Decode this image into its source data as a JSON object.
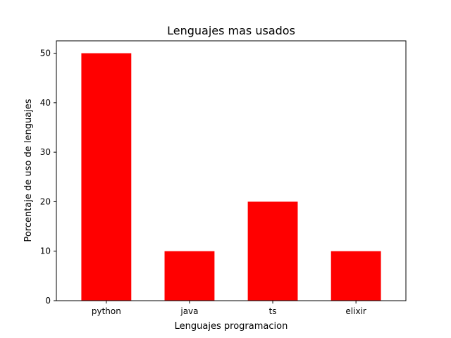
{
  "chart_data": {
    "type": "bar",
    "title": "Lenguajes mas usados",
    "xlabel": "Lenguajes programacion",
    "ylabel": "Porcentaje de uso de lenguajes",
    "categories": [
      "python",
      "java",
      "ts",
      "elixir"
    ],
    "values": [
      50,
      10,
      20,
      10
    ],
    "ylim": [
      0,
      52.5
    ],
    "yticks": [
      0,
      10,
      20,
      30,
      40,
      50
    ],
    "bar_color": "#ff0000",
    "grid": false,
    "legend": "none"
  }
}
